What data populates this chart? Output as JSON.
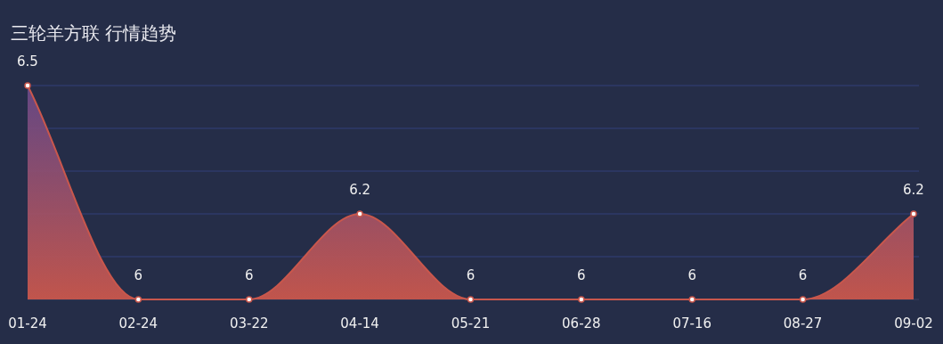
{
  "chart_data": {
    "type": "area",
    "title": "三轮羊方联 行情趋势",
    "categories": [
      "01-24",
      "02-24",
      "03-22",
      "04-14",
      "05-21",
      "06-28",
      "07-16",
      "08-27",
      "09-02"
    ],
    "values": [
      6.5,
      6,
      6,
      6.2,
      6,
      6,
      6,
      6,
      6.2
    ],
    "color": "#c9574c",
    "ylim": [
      6,
      6.5
    ],
    "yticks": [
      {
        "value": 6,
        "label": null
      },
      {
        "value": 6.1,
        "label": null
      },
      {
        "value": 6.2,
        "label": null
      },
      {
        "value": 6.3,
        "label": null
      },
      {
        "value": 6.4,
        "label": null
      },
      {
        "value": 6.5,
        "label": null
      }
    ],
    "grid": "y",
    "tick_labels": "x",
    "data_labels": true,
    "marker": "circle"
  }
}
